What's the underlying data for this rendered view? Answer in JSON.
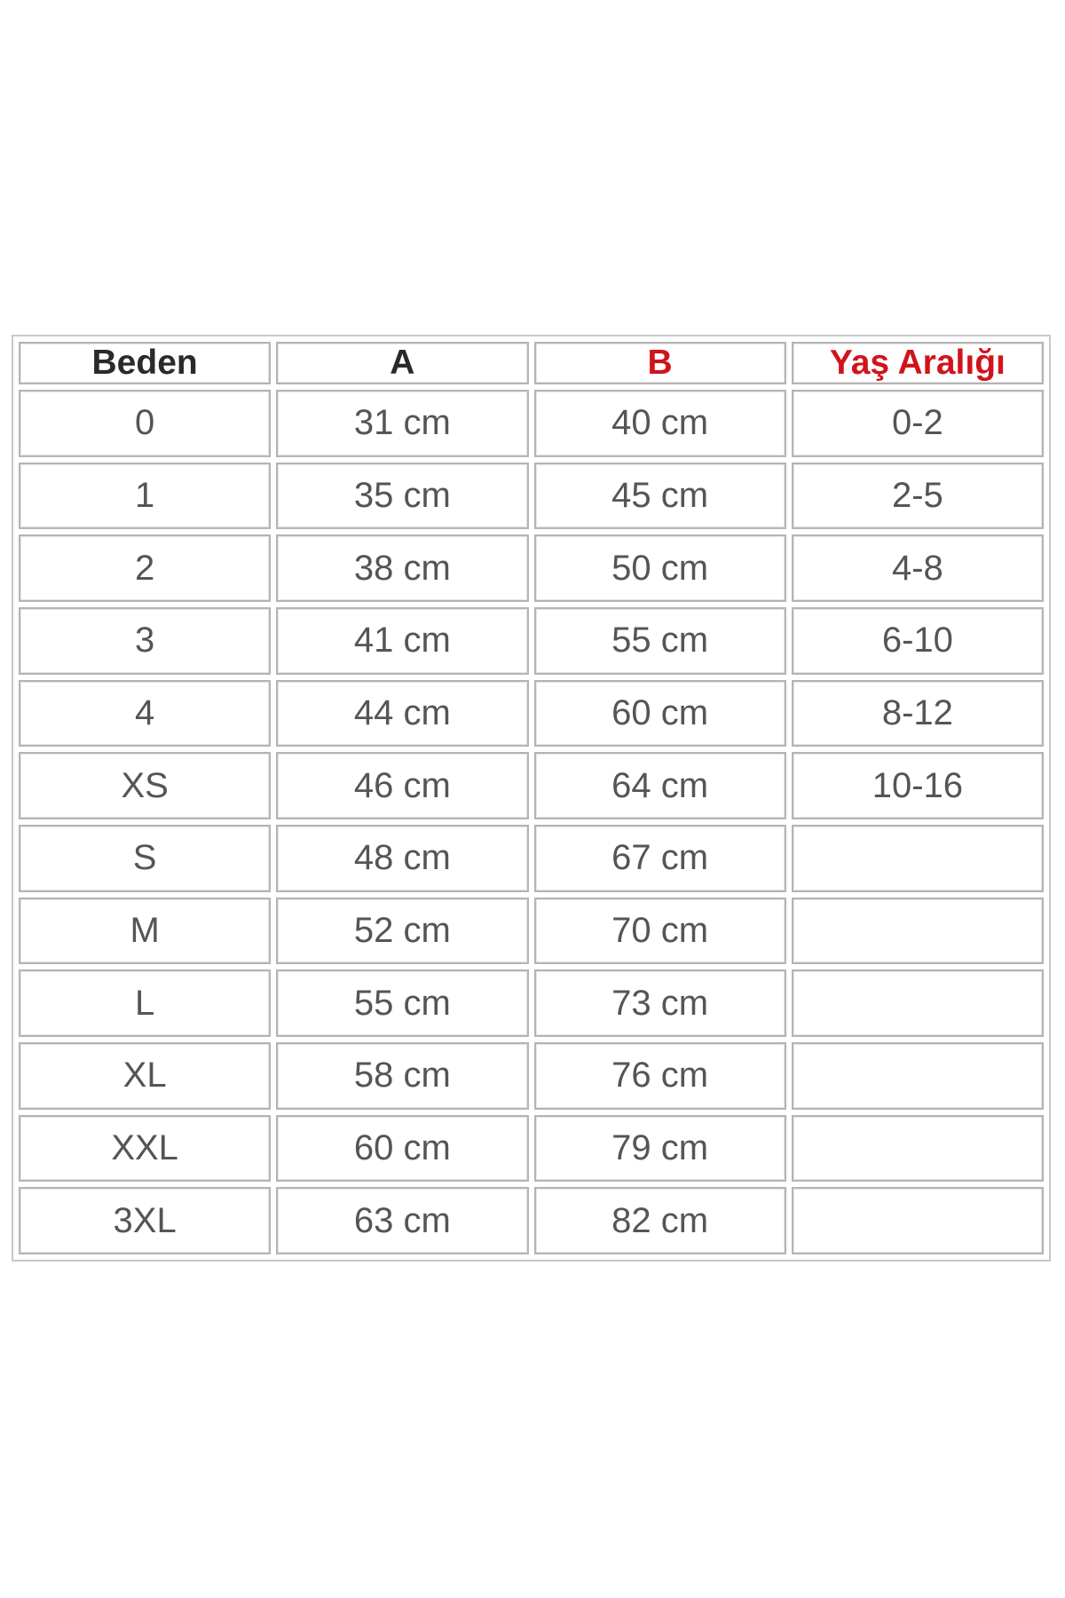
{
  "table": {
    "headers": [
      "Beden",
      "A",
      "B",
      "Yaş Aralığı"
    ],
    "header_colors": [
      "#2a2a2a",
      "#2a2a2a",
      "#d0141c",
      "#d0141c"
    ],
    "rows": [
      [
        "0",
        "31 cm",
        "40 cm",
        "0-2"
      ],
      [
        "1",
        "35 cm",
        "45 cm",
        "2-5"
      ],
      [
        "2",
        "38 cm",
        "50 cm",
        "4-8"
      ],
      [
        "3",
        "41 cm",
        "55 cm",
        "6-10"
      ],
      [
        "4",
        "44 cm",
        "60 cm",
        "8-12"
      ],
      [
        "XS",
        "46 cm",
        "64 cm",
        "10-16"
      ],
      [
        "S",
        "48 cm",
        "67 cm",
        ""
      ],
      [
        "M",
        "52 cm",
        "70 cm",
        ""
      ],
      [
        "L",
        "55 cm",
        "73 cm",
        ""
      ],
      [
        "XL",
        "58 cm",
        "76 cm",
        ""
      ],
      [
        "XXL",
        "60 cm",
        "79 cm",
        ""
      ],
      [
        "3XL",
        "63 cm",
        "82 cm",
        ""
      ]
    ]
  }
}
